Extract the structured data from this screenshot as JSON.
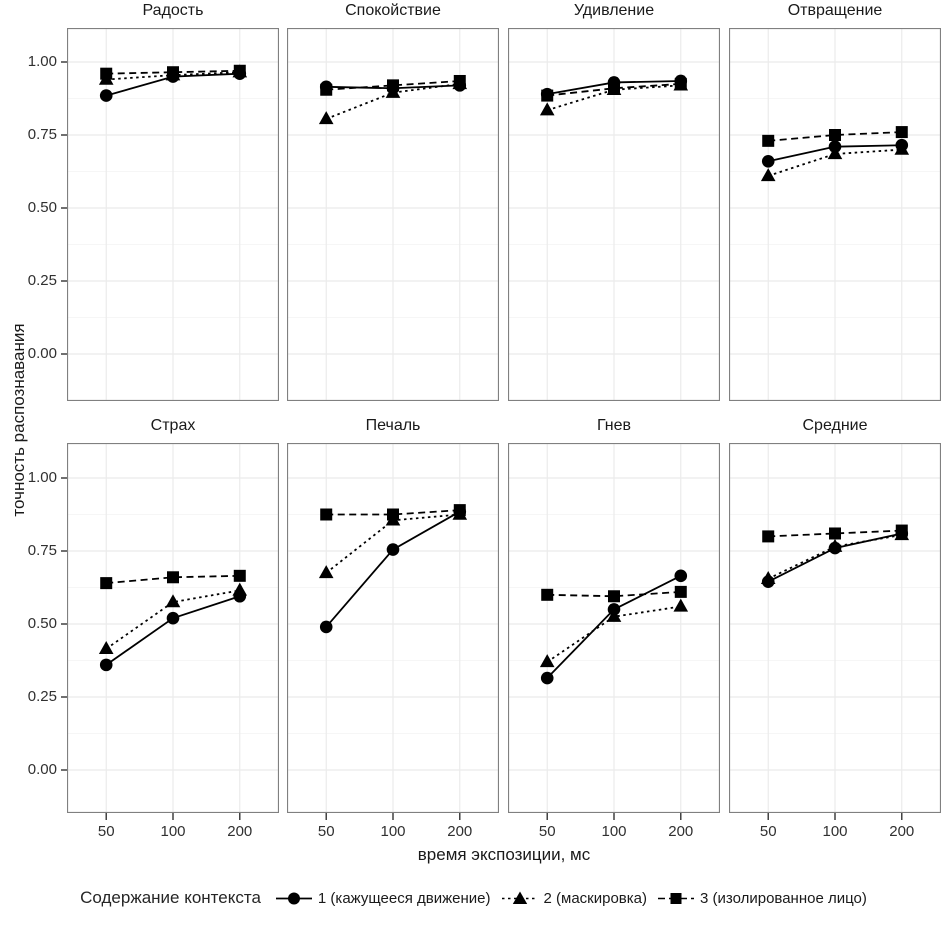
{
  "chart_data": {
    "type": "line",
    "xlabel": "время экспозиции, мс",
    "ylabel": "точность распознавания",
    "x": [
      50,
      100,
      200
    ],
    "x_tick_labels": [
      "50",
      "100",
      "200"
    ],
    "y_ticks": [
      0,
      0.25,
      0.5,
      0.75,
      1.0
    ],
    "y_tick_labels": [
      "0.00",
      "0.25",
      "0.50",
      "0.75",
      "1.00"
    ],
    "ylim": [
      -0.12,
      1.12
    ],
    "grid": true,
    "legend_position": "bottom",
    "legend_title": "Содержание контекста",
    "series": [
      {
        "name": "1 (кажущееся движение)",
        "marker": "circle",
        "line": "solid"
      },
      {
        "name": "2 (маскировка)",
        "marker": "triangle",
        "line": "dotted"
      },
      {
        "name": "3 (изолированное лицо)",
        "marker": "square",
        "line": "dashed"
      }
    ],
    "facets": [
      {
        "title": "Радость",
        "values": [
          [
            0.885,
            0.95,
            0.96
          ],
          [
            0.94,
            0.955,
            0.965
          ],
          [
            0.96,
            0.965,
            0.97
          ]
        ]
      },
      {
        "title": "Спокойствие",
        "values": [
          [
            0.915,
            0.91,
            0.92
          ],
          [
            0.805,
            0.895,
            0.925
          ],
          [
            0.905,
            0.92,
            0.935
          ]
        ]
      },
      {
        "title": "Удивление",
        "values": [
          [
            0.89,
            0.93,
            0.935
          ],
          [
            0.835,
            0.905,
            0.92
          ],
          [
            0.885,
            0.91,
            0.925
          ]
        ]
      },
      {
        "title": "Отвращение",
        "values": [
          [
            0.66,
            0.71,
            0.715
          ],
          [
            0.61,
            0.685,
            0.7
          ],
          [
            0.73,
            0.75,
            0.76
          ]
        ]
      },
      {
        "title": "Страх",
        "values": [
          [
            0.36,
            0.52,
            0.595
          ],
          [
            0.415,
            0.575,
            0.615
          ],
          [
            0.64,
            0.66,
            0.665
          ]
        ]
      },
      {
        "title": "Печаль",
        "values": [
          [
            0.49,
            0.755,
            0.885
          ],
          [
            0.675,
            0.855,
            0.875
          ],
          [
            0.875,
            0.875,
            0.89
          ]
        ]
      },
      {
        "title": "Гнев",
        "values": [
          [
            0.315,
            0.55,
            0.665
          ],
          [
            0.37,
            0.525,
            0.56
          ],
          [
            0.6,
            0.595,
            0.61
          ]
        ]
      },
      {
        "title": "Средние",
        "values": [
          [
            0.645,
            0.76,
            0.81
          ],
          [
            0.655,
            0.765,
            0.805
          ],
          [
            0.8,
            0.81,
            0.82
          ]
        ]
      }
    ],
    "colors": {
      "data": "#000000",
      "text": "#1a1a1a",
      "panel_border": "#808080",
      "grid_major": "#ebebeb",
      "grid_minor": "#f6f6f6",
      "tick_mark": "#333333",
      "background": "#ffffff"
    }
  }
}
